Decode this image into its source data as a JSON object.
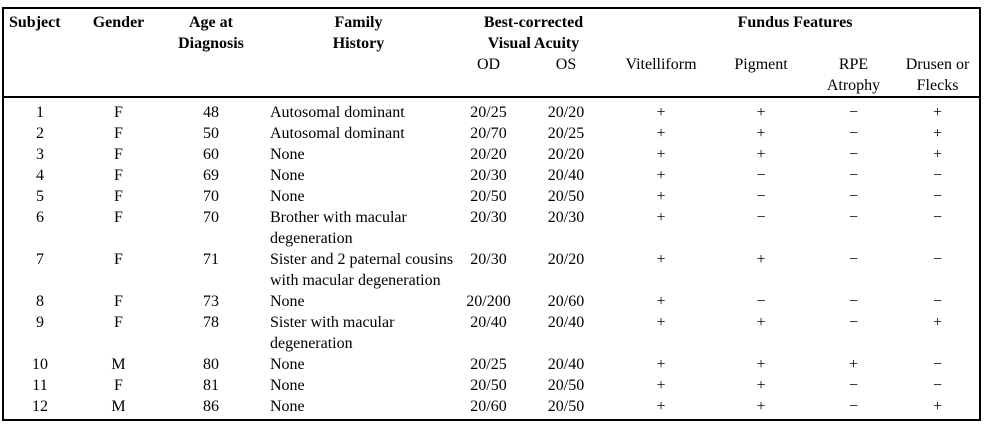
{
  "table": {
    "header": {
      "subject": "Subject",
      "gender": "Gender",
      "age_at_diagnosis": "Age at\nDiagnosis",
      "family_history": "Family\nHistory",
      "bcva": "Best-corrected\nVisual Acuity",
      "fundus_features": "Fundus Features",
      "od": "OD",
      "os": "OS",
      "vitelliform": "Vitelliform",
      "pigment": "Pigment",
      "rpe_atrophy": "RPE\nAtrophy",
      "drusen_flecks": "Drusen or\nFlecks"
    },
    "rows": [
      {
        "subject": "1",
        "gender": "F",
        "age": "48",
        "family": "Autosomal dominant",
        "od": "20/25",
        "os": "20/20",
        "vitelliform": "+",
        "pigment": "+",
        "rpe": "−",
        "drusen": "+"
      },
      {
        "subject": "2",
        "gender": "F",
        "age": "50",
        "family": "Autosomal dominant",
        "od": "20/70",
        "os": "20/25",
        "vitelliform": "+",
        "pigment": "+",
        "rpe": "−",
        "drusen": "+"
      },
      {
        "subject": "3",
        "gender": "F",
        "age": "60",
        "family": "None",
        "od": "20/20",
        "os": "20/20",
        "vitelliform": "+",
        "pigment": "+",
        "rpe": "−",
        "drusen": "+"
      },
      {
        "subject": "4",
        "gender": "F",
        "age": "69",
        "family": "None",
        "od": "20/30",
        "os": "20/40",
        "vitelliform": "+",
        "pigment": "−",
        "rpe": "−",
        "drusen": "−"
      },
      {
        "subject": "5",
        "gender": "F",
        "age": "70",
        "family": "None",
        "od": "20/50",
        "os": "20/50",
        "vitelliform": "+",
        "pigment": "−",
        "rpe": "−",
        "drusen": "−"
      },
      {
        "subject": "6",
        "gender": "F",
        "age": "70",
        "family": "Brother with macular degeneration",
        "od": "20/30",
        "os": "20/30",
        "vitelliform": "+",
        "pigment": "−",
        "rpe": "−",
        "drusen": "−"
      },
      {
        "subject": "7",
        "gender": "F",
        "age": "71",
        "family": "Sister and 2 paternal cousins with macular degeneration",
        "od": "20/30",
        "os": "20/20",
        "vitelliform": "+",
        "pigment": "+",
        "rpe": "−",
        "drusen": "−"
      },
      {
        "subject": "8",
        "gender": "F",
        "age": "73",
        "family": "None",
        "od": "20/200",
        "os": "20/60",
        "vitelliform": "+",
        "pigment": "−",
        "rpe": "−",
        "drusen": "−"
      },
      {
        "subject": "9",
        "gender": "F",
        "age": "78",
        "family": "Sister with macular degeneration",
        "od": "20/40",
        "os": "20/40",
        "vitelliform": "+",
        "pigment": "+",
        "rpe": "−",
        "drusen": "+"
      },
      {
        "subject": "10",
        "gender": "M",
        "age": "80",
        "family": "None",
        "od": "20/25",
        "os": "20/40",
        "vitelliform": "+",
        "pigment": "+",
        "rpe": "+",
        "drusen": "−"
      },
      {
        "subject": "11",
        "gender": "F",
        "age": "81",
        "family": "None",
        "od": "20/50",
        "os": "20/50",
        "vitelliform": "+",
        "pigment": "+",
        "rpe": "−",
        "drusen": "−"
      },
      {
        "subject": "12",
        "gender": "M",
        "age": "86",
        "family": "None",
        "od": "20/60",
        "os": "20/50",
        "vitelliform": "+",
        "pigment": "+",
        "rpe": "−",
        "drusen": "+"
      }
    ]
  }
}
